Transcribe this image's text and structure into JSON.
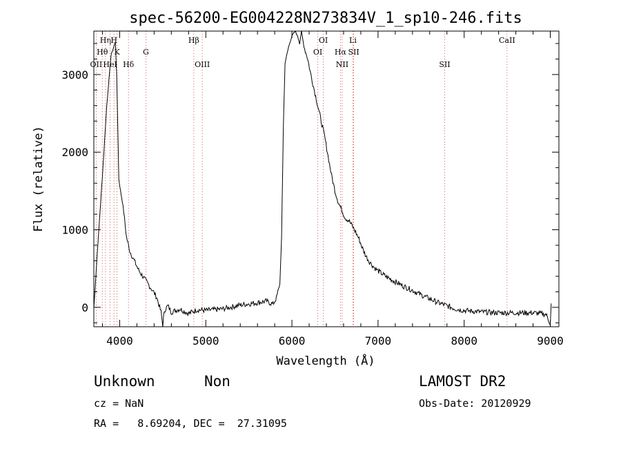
{
  "chart_data": {
    "type": "line",
    "title": "spec-56200-EG004228N273834V_1_sp10-246.fits",
    "xlabel": "Wavelength (Å)",
    "ylabel": "Flux (relative)",
    "xlim": [
      3700,
      9100
    ],
    "ylim": [
      -250,
      3560
    ],
    "xticks": [
      4000,
      5000,
      6000,
      7000,
      8000,
      9000
    ],
    "yticks": [
      0,
      1000,
      2000,
      3000
    ],
    "grid": false,
    "series": [
      {
        "x": [
          3700,
          3740,
          3800,
          3850,
          3900,
          3950,
          3965,
          3975,
          3990,
          4010,
          4040,
          4080,
          4120,
          4170,
          4220,
          4280,
          4330,
          4380,
          4430,
          4480,
          4500,
          4520,
          4560,
          4600,
          4700,
          4800,
          4900,
          5000,
          5200,
          5400,
          5600,
          5700,
          5780,
          5820,
          5860,
          5880,
          5900,
          5920,
          5960,
          6000,
          6040,
          6070,
          6090,
          6110,
          6140,
          6180,
          6220,
          6260,
          6300,
          6340,
          6380,
          6420,
          6460,
          6500,
          6540,
          6580,
          6620,
          6660,
          6700,
          6740,
          6780,
          6820,
          6860,
          6900,
          6950,
          7000,
          7100,
          7200,
          7300,
          7400,
          7500,
          7600,
          7700,
          7800,
          7900,
          8000,
          8200,
          8400,
          8600,
          8800,
          8950,
          9000,
          9010
        ],
        "y": [
          -10,
          700,
          1700,
          2600,
          3250,
          3420,
          3000,
          2500,
          1650,
          1500,
          1300,
          900,
          720,
          600,
          480,
          380,
          300,
          220,
          130,
          -60,
          -230,
          -40,
          20,
          -60,
          -20,
          -80,
          -30,
          -40,
          -20,
          30,
          60,
          80,
          40,
          120,
          300,
          900,
          2300,
          3150,
          3350,
          3500,
          3560,
          3480,
          3400,
          3560,
          3360,
          3220,
          3000,
          2800,
          2600,
          2400,
          2200,
          1950,
          1700,
          1500,
          1350,
          1250,
          1150,
          1120,
          1050,
          970,
          880,
          760,
          660,
          590,
          520,
          470,
          390,
          330,
          270,
          220,
          160,
          110,
          60,
          20,
          -20,
          -40,
          -60,
          -70,
          -70,
          -70,
          -90,
          -210,
          50
        ]
      }
    ],
    "emission_lines": [
      {
        "label": "OII",
        "x": 3727,
        "row": 3
      },
      {
        "label": "Hθ",
        "x": 3798,
        "row": 2
      },
      {
        "label": "Hη",
        "x": 3835,
        "row": 1
      },
      {
        "label": "HeI",
        "x": 3889,
        "row": 3
      },
      {
        "label": "H",
        "x": 3934,
        "row": 1
      },
      {
        "label": "K",
        "x": 3969,
        "row": 2
      },
      {
        "label": "Hδ",
        "x": 4102,
        "row": 3
      },
      {
        "label": "G",
        "x": 4305,
        "row": 2
      },
      {
        "label": "Hβ",
        "x": 4861,
        "row": 1
      },
      {
        "label": "OIII",
        "x": 4959,
        "row": 3
      },
      {
        "label": "OI",
        "x": 6300,
        "row": 2
      },
      {
        "label": "OI",
        "x": 6364,
        "row": 1
      },
      {
        "label": "Hα",
        "x": 6563,
        "row": 2
      },
      {
        "label": "NII",
        "x": 6584,
        "row": 3
      },
      {
        "label": "Li",
        "x": 6708,
        "row": 1
      },
      {
        "label": "SII",
        "x": 6717,
        "row": 2
      },
      {
        "label": "SII",
        "x": 7774,
        "row": 3
      },
      {
        "label": "CaII",
        "x": 8498,
        "row": 1
      }
    ]
  },
  "info": {
    "class": "Unknown",
    "subclass": "Non",
    "survey": "LAMOST DR2",
    "cz": "cz = NaN",
    "obs_date": "Obs-Date: 20120929",
    "coords": "RA =   8.69204, DEC =  27.31095"
  }
}
